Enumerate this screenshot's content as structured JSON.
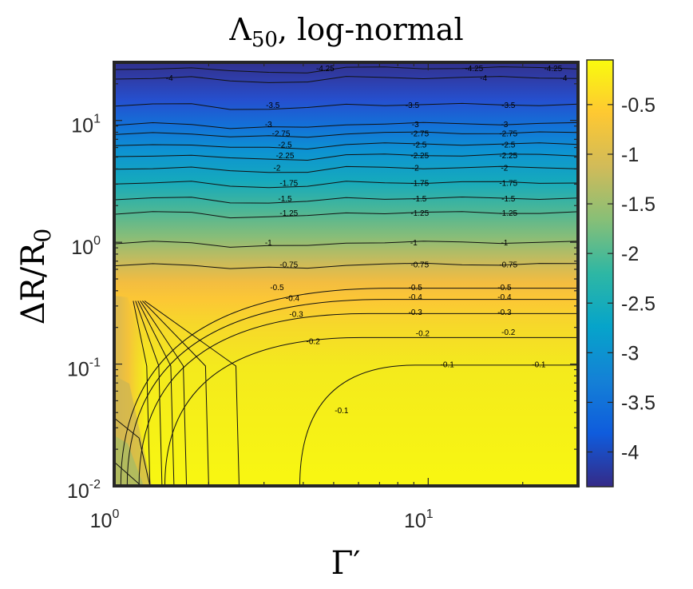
{
  "chart_data": {
    "type": "contour",
    "title": "Λ50, log-normal",
    "title_main": "Λ",
    "title_sub": "50",
    "title_rest": ", log-normal",
    "xlabel": "Γ′",
    "ylabel": "ΔR/R0",
    "ylabel_main": "ΔR/R",
    "ylabel_sub": "0",
    "x_scale": "log",
    "y_scale": "log",
    "xlim": [
      1,
      30
    ],
    "ylim": [
      0.01,
      30
    ],
    "x_ticks": [
      {
        "value": 1,
        "base": "10",
        "exp": "0"
      },
      {
        "value": 10,
        "base": "10",
        "exp": "1"
      }
    ],
    "y_ticks": [
      {
        "value": 0.01,
        "base": "10",
        "exp": "-2"
      },
      {
        "value": 0.1,
        "base": "10",
        "exp": "-1"
      },
      {
        "value": 1,
        "base": "10",
        "exp": "0"
      },
      {
        "value": 10,
        "base": "10",
        "exp": "1"
      }
    ],
    "colorbar": {
      "colormap": "parula",
      "range": [
        -4.35,
        -0.05
      ],
      "ticks": [
        {
          "value": -0.5,
          "label": "-0.5"
        },
        {
          "value": -1,
          "label": "-1"
        },
        {
          "value": -1.5,
          "label": "-1.5"
        },
        {
          "value": -2,
          "label": "-2"
        },
        {
          "value": -2.5,
          "label": "-2.5"
        },
        {
          "value": -3,
          "label": "-3"
        },
        {
          "value": -3.5,
          "label": "-3.5"
        },
        {
          "value": -4,
          "label": "-4"
        }
      ]
    },
    "upper_bands": [
      {
        "level": -4.25,
        "y": 27,
        "labels": [
          {
            "text": "-4.25",
            "x": 4.7
          },
          {
            "text": "-4.25",
            "x": 14
          },
          {
            "text": "-4.25",
            "x": 25
          }
        ]
      },
      {
        "level": -4,
        "y": 22.5,
        "labels": [
          {
            "text": "-4",
            "x": 1.5
          },
          {
            "text": "-4",
            "x": 15
          },
          {
            "text": "-4",
            "x": 27
          }
        ]
      },
      {
        "level": -3.5,
        "y": 13.5,
        "labels": [
          {
            "text": "-3.5",
            "x": 3.2
          },
          {
            "text": "-3.5",
            "x": 8.9
          },
          {
            "text": "-3.5",
            "x": 18
          }
        ]
      },
      {
        "level": -3,
        "y": 9.4,
        "labels": [
          {
            "text": "-3",
            "x": 3.1
          },
          {
            "text": "-3",
            "x": 9.1
          },
          {
            "text": "-3",
            "x": 17.5
          }
        ]
      },
      {
        "level": -2.75,
        "y": 7.9,
        "labels": [
          {
            "text": "-2.75",
            "x": 3.4
          },
          {
            "text": "-2.75",
            "x": 9.4
          },
          {
            "text": "-2.75",
            "x": 18
          }
        ]
      },
      {
        "level": -2.5,
        "y": 6.4,
        "labels": [
          {
            "text": "-2.5",
            "x": 3.5
          },
          {
            "text": "-2.5",
            "x": 9.4
          },
          {
            "text": "-2.5",
            "x": 18
          }
        ]
      },
      {
        "level": -2.25,
        "y": 5.2,
        "labels": [
          {
            "text": "-2.25",
            "x": 3.5
          },
          {
            "text": "-2.25",
            "x": 9.4
          },
          {
            "text": "-2.25",
            "x": 18
          }
        ]
      },
      {
        "level": -2,
        "y": 4.1,
        "labels": [
          {
            "text": "-2",
            "x": 3.3
          },
          {
            "text": "-2",
            "x": 9.1
          },
          {
            "text": "-2",
            "x": 17.5
          }
        ]
      },
      {
        "level": -1.75,
        "y": 3.1,
        "labels": [
          {
            "text": "-1.75",
            "x": 3.6
          },
          {
            "text": "-1.75",
            "x": 9.4
          },
          {
            "text": "-1.75",
            "x": 18
          }
        ]
      },
      {
        "level": -1.5,
        "y": 2.3,
        "labels": [
          {
            "text": "-1.5",
            "x": 3.5
          },
          {
            "text": "-1.5",
            "x": 9.4
          },
          {
            "text": "-1.5",
            "x": 18
          }
        ]
      },
      {
        "level": -1.25,
        "y": 1.75,
        "labels": [
          {
            "text": "-1.25",
            "x": 3.6
          },
          {
            "text": "-1.25",
            "x": 9.4
          },
          {
            "text": "-1.25",
            "x": 18
          }
        ]
      },
      {
        "level": -1,
        "y": 1.0,
        "labels": [
          {
            "text": "-1",
            "x": 3.1
          },
          {
            "text": "-1",
            "x": 9.0
          },
          {
            "text": "-1",
            "x": 17.5
          }
        ]
      },
      {
        "level": -0.75,
        "y": 0.66,
        "labels": [
          {
            "text": "-0.75",
            "x": 3.6
          },
          {
            "text": "-0.75",
            "x": 9.4
          },
          {
            "text": "-0.75",
            "x": 18
          }
        ]
      }
    ],
    "lower_contours": [
      {
        "level": -0.5,
        "labels": [
          {
            "text": "-0.5",
            "x": 3.3,
            "y": 0.43
          },
          {
            "text": "-0.5",
            "x": 9.1,
            "y": 0.43
          },
          {
            "text": "-0.5",
            "x": 17.5,
            "y": 0.43
          }
        ]
      },
      {
        "level": -0.4,
        "labels": [
          {
            "text": "-0.4",
            "x": 3.7,
            "y": 0.35
          },
          {
            "text": "-0.4",
            "x": 9.1,
            "y": 0.36
          },
          {
            "text": "-0.4",
            "x": 17.5,
            "y": 0.36
          }
        ]
      },
      {
        "level": -0.3,
        "labels": [
          {
            "text": "-0.3",
            "x": 3.8,
            "y": 0.26
          },
          {
            "text": "-0.3",
            "x": 9.1,
            "y": 0.27
          },
          {
            "text": "-0.3",
            "x": 17.5,
            "y": 0.27
          }
        ]
      },
      {
        "level": -0.2,
        "labels": [
          {
            "text": "-0.2",
            "x": 4.3,
            "y": 0.155
          },
          {
            "text": "-0.2",
            "x": 9.6,
            "y": 0.18
          },
          {
            "text": "-0.2",
            "x": 18,
            "y": 0.185
          }
        ]
      },
      {
        "level": -0.1,
        "labels": [
          {
            "text": "-0.1",
            "x": 5.3,
            "y": 0.042
          },
          {
            "text": "-0.1",
            "x": 11.5,
            "y": 0.1
          },
          {
            "text": "-0.1",
            "x": 22.5,
            "y": 0.1
          }
        ]
      }
    ]
  }
}
